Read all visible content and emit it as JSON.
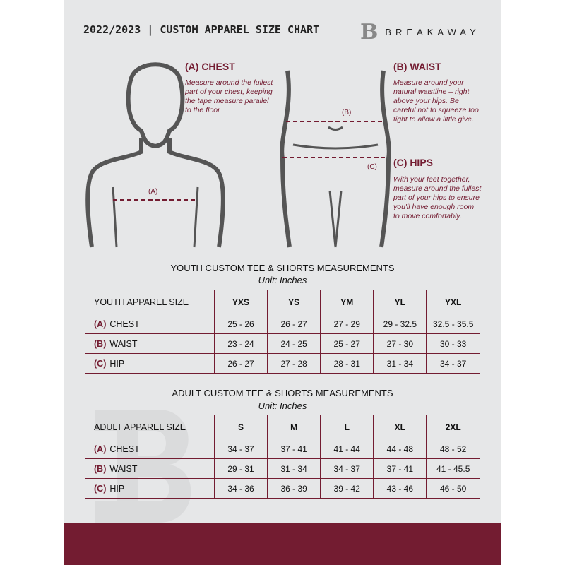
{
  "header": {
    "title": "2022/2023  |  CUSTOM APPAREL SIZE CHART",
    "brand": "BREAKAWAY",
    "logo_letter": "B"
  },
  "measures": {
    "chest": {
      "title": "(A) CHEST",
      "text": "Measure around the fullest part of your chest, keeping the tape measure parallel to the floor",
      "marker": "(A)"
    },
    "waist": {
      "title": "(B) WAIST",
      "text": "Measure around your natural waistline – right above your hips. Be careful not to squeeze too tight to allow a little give.",
      "marker": "(B)"
    },
    "hips": {
      "title": "(C) HIPS",
      "text": "With your feet together, measure around the fullest part of your hips to ensure you'll have enough room to move comfortably.",
      "marker": "(C)"
    }
  },
  "youth": {
    "title": "YOUTH CUSTOM TEE & SHORTS MEASUREMENTS",
    "unit": "Unit: Inches",
    "header": [
      "YOUTH APPAREL SIZE",
      "YXS",
      "YS",
      "YM",
      "YL",
      "YXL"
    ],
    "rows": [
      {
        "code": "(A)",
        "name": "CHEST",
        "values": [
          "25 - 26",
          "26 - 27",
          "27 - 29",
          "29 - 32.5",
          "32.5 - 35.5"
        ]
      },
      {
        "code": "(B)",
        "name": "WAIST",
        "values": [
          "23 - 24",
          "24 - 25",
          "25 - 27",
          "27 - 30",
          "30 - 33"
        ]
      },
      {
        "code": "(C)",
        "name": "HIP",
        "values": [
          "26 - 27",
          "27 - 28",
          "28 - 31",
          "31 - 34",
          "34 - 37"
        ]
      }
    ]
  },
  "adult": {
    "title": "ADULT CUSTOM TEE & SHORTS MEASUREMENTS",
    "unit": "Unit: Inches",
    "header": [
      "ADULT APPAREL SIZE",
      "S",
      "M",
      "L",
      "XL",
      "2XL"
    ],
    "rows": [
      {
        "code": "(A)",
        "name": "CHEST",
        "values": [
          "34 - 37",
          "37 - 41",
          "41 - 44",
          "44 - 48",
          "48 - 52"
        ]
      },
      {
        "code": "(B)",
        "name": "WAIST",
        "values": [
          "29 - 31",
          "31 - 34",
          "34 - 37",
          "37 - 41",
          "41 - 45.5"
        ]
      },
      {
        "code": "(C)",
        "name": "HIP",
        "values": [
          "34 - 36",
          "36 - 39",
          "39 - 42",
          "43 - 46",
          "46 - 50"
        ]
      }
    ]
  },
  "colors": {
    "accent": "#731c31",
    "background": "#e6e7e8"
  }
}
